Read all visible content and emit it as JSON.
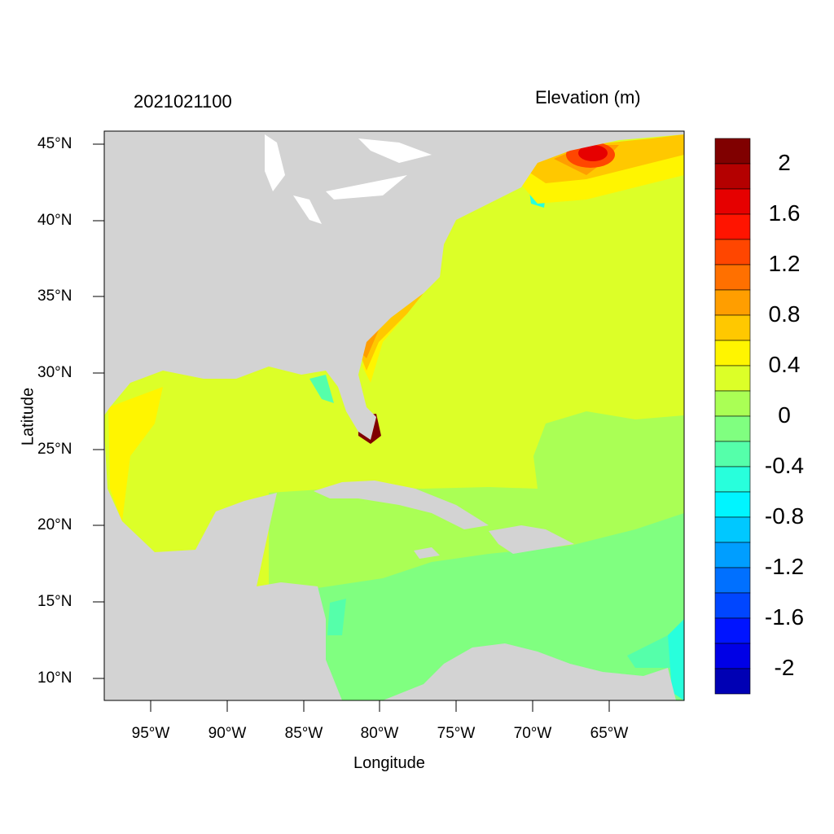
{
  "title_left": "2021021100",
  "title_right": "Elevation (m)",
  "axes": {
    "xlabel": "Longitude",
    "ylabel": "Latitude",
    "lat_ticks": [
      "45°N",
      "40°N",
      "35°N",
      "30°N",
      "25°N",
      "20°N",
      "15°N",
      "10°N"
    ],
    "lon_ticks": [
      "95°W",
      "90°W",
      "85°W",
      "80°W",
      "75°W",
      "70°W",
      "65°W"
    ]
  },
  "colorbar": {
    "labels": [
      "2",
      "1.6",
      "1.2",
      "0.8",
      "0.4",
      "0",
      "-0.4",
      "-0.8",
      "-1.2",
      "-1.6",
      "-2"
    ],
    "colors": [
      "#800000",
      "#B40000",
      "#E60000",
      "#FF1400",
      "#FF4600",
      "#FF7000",
      "#FF9E00",
      "#FFC800",
      "#FFF500",
      "#DCFF28",
      "#AAFF55",
      "#80FF80",
      "#55FFAA",
      "#28FFDC",
      "#00F5FF",
      "#00C8FF",
      "#009EFF",
      "#0070FF",
      "#0046FF",
      "#0014FF",
      "#0000E6",
      "#0000B4"
    ]
  },
  "map_colors": {
    "land": "#D3D3D3",
    "lakes": "#FFFFFF"
  }
}
